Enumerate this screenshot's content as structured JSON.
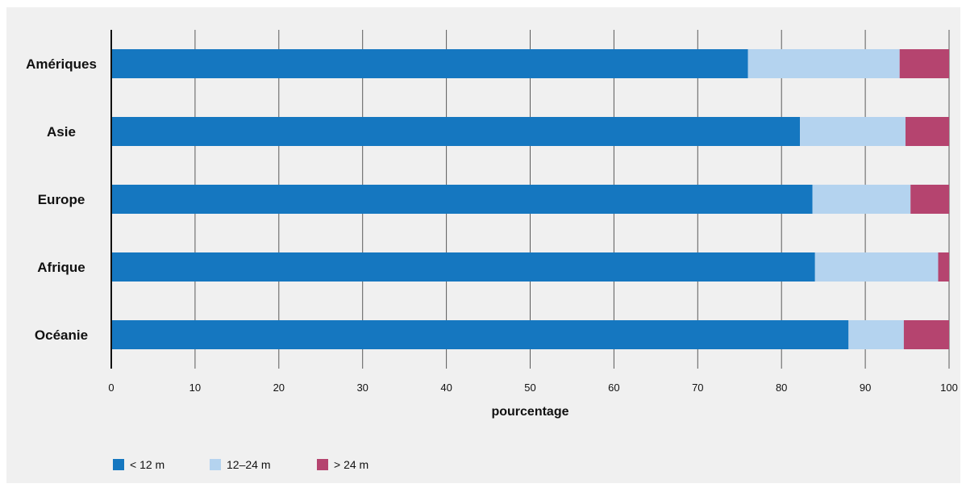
{
  "chart_data": {
    "type": "bar",
    "orientation": "horizontal",
    "stacked": true,
    "title": "",
    "xlabel": "pourcentage",
    "ylabel": "",
    "xlim": [
      0,
      100
    ],
    "xticks": [
      0,
      10,
      20,
      30,
      40,
      50,
      60,
      70,
      80,
      90,
      100
    ],
    "grid": true,
    "legend_position": "bottom-left",
    "categories": [
      "Amériques",
      "Asie",
      "Europe",
      "Afrique",
      "Océanie"
    ],
    "series": [
      {
        "name": "< 12 m",
        "color": "#1577c0",
        "values": [
          76,
          82.2,
          83.7,
          84,
          88
        ]
      },
      {
        "name": "12–24 m",
        "color": "#b4d3ef",
        "values": [
          18.1,
          12.6,
          11.7,
          14.7,
          6.6
        ]
      },
      {
        "name": "> 24 m",
        "color": "#b5446f",
        "values": [
          5.9,
          5.2,
          4.6,
          1.3,
          5.4
        ]
      }
    ]
  }
}
